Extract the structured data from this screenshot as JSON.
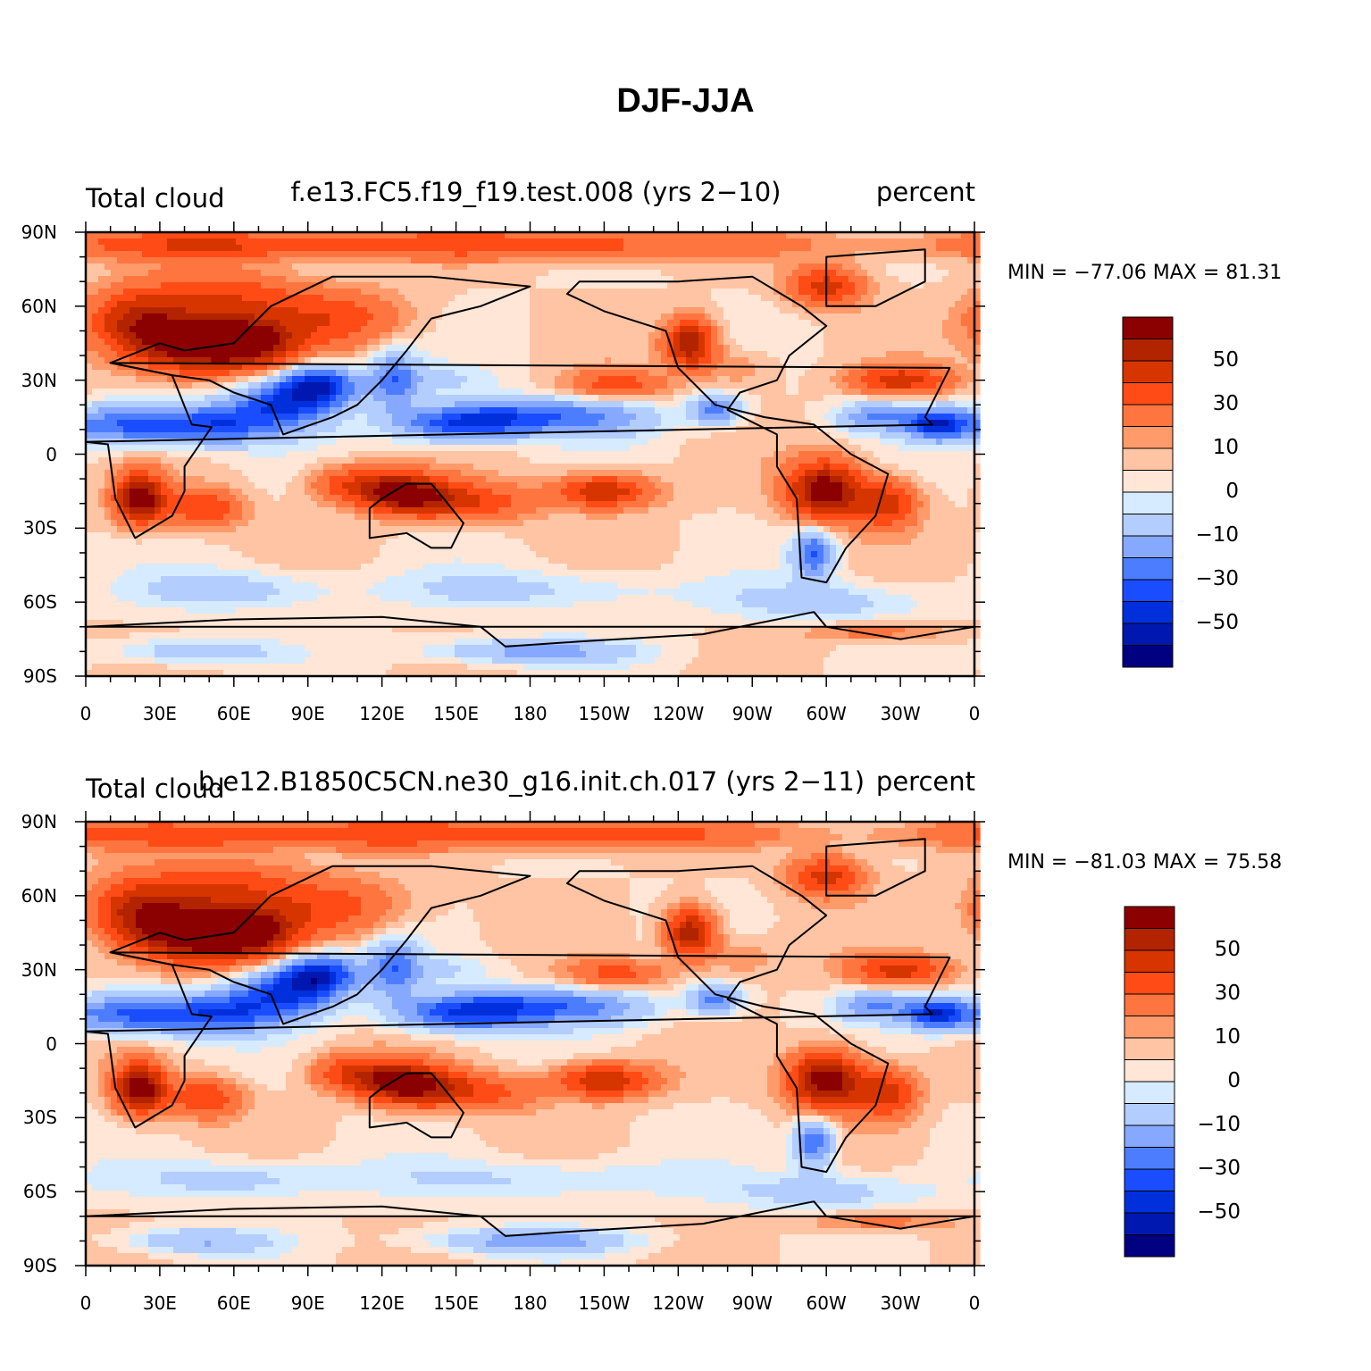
{
  "title": "DJF-JJA",
  "lat_ticks": [
    "90N",
    "60N",
    "30N",
    "0",
    "30S",
    "60S",
    "90S"
  ],
  "lon_ticks": [
    "0",
    "30E",
    "60E",
    "90E",
    "120E",
    "150E",
    "180",
    "150W",
    "120W",
    "90W",
    "60W",
    "30W",
    "0"
  ],
  "colorbar": {
    "colors": [
      "#8b0000",
      "#b22400",
      "#d63500",
      "#ff4b16",
      "#ff7540",
      "#ff9a6a",
      "#ffc4a4",
      "#ffe6d6",
      "#d6ebff",
      "#b3cdff",
      "#86a9ff",
      "#4d7dff",
      "#1a4dff",
      "#0030dc",
      "#0018b0",
      "#000080"
    ],
    "labels": [
      "50",
      "30",
      "10",
      "0",
      "−10",
      "−30",
      "−50"
    ],
    "levels": [
      -70,
      -60,
      -50,
      -40,
      -30,
      -20,
      -10,
      -5,
      0,
      5,
      10,
      20,
      30,
      40,
      50,
      60,
      70
    ]
  },
  "panels": [
    {
      "left_title": "Total cloud",
      "center_title": "f.e13.FC5.f19_f19.test.008 (yrs 2−10)",
      "right_title": "percent",
      "min_max": "MIN = −77.06  MAX =   81.31"
    },
    {
      "left_title": "Total cloud",
      "center_title": "b.e12.B1850C5CN.ne30_g16.init.ch.017 (yrs 2−11)",
      "right_title": "percent",
      "min_max": "MIN = −81.03  MAX =   75.58"
    }
  ]
}
